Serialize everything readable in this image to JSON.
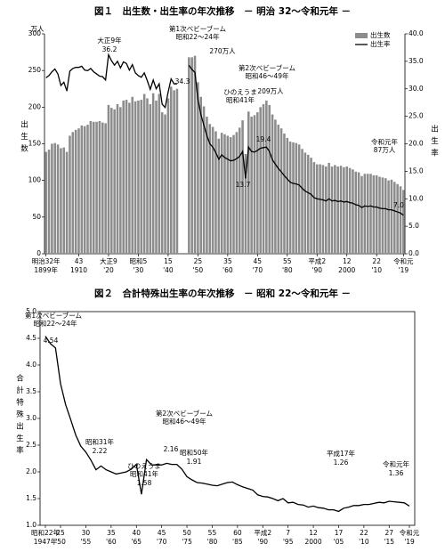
{
  "chart_data": [
    {
      "type": "combo",
      "title": "図１　出生数・出生率の年次推移　－ 明治 32～令和元年 －",
      "y_unit": "万人",
      "ylabel": "出生数",
      "y2label": "出生率",
      "legend": "upper right",
      "grid": false,
      "x": [
        1899,
        1900,
        1901,
        1902,
        1903,
        1904,
        1905,
        1906,
        1907,
        1908,
        1909,
        1910,
        1911,
        1912,
        1913,
        1914,
        1915,
        1916,
        1917,
        1918,
        1919,
        1920,
        1921,
        1922,
        1923,
        1924,
        1925,
        1926,
        1927,
        1928,
        1929,
        1930,
        1931,
        1932,
        1933,
        1934,
        1935,
        1936,
        1937,
        1938,
        1939,
        1940,
        1941,
        1942,
        1943,
        1944,
        1945,
        1946,
        1947,
        1948,
        1949,
        1950,
        1951,
        1952,
        1953,
        1954,
        1955,
        1956,
        1957,
        1958,
        1959,
        1960,
        1961,
        1962,
        1963,
        1964,
        1965,
        1966,
        1967,
        1968,
        1969,
        1970,
        1971,
        1972,
        1973,
        1974,
        1975,
        1976,
        1977,
        1978,
        1979,
        1980,
        1981,
        1982,
        1983,
        1984,
        1985,
        1986,
        1987,
        1988,
        1989,
        1990,
        1991,
        1992,
        1993,
        1994,
        1995,
        1996,
        1997,
        1998,
        1999,
        2000,
        2001,
        2002,
        2003,
        2004,
        2005,
        2006,
        2007,
        2008,
        2009,
        2010,
        2011,
        2012,
        2013,
        2014,
        2015,
        2016,
        2017,
        2018,
        2019
      ],
      "series": [
        {
          "name": "出生数",
          "type": "bar",
          "color": "#8c8c8c",
          "values": [
            139,
            142,
            150,
            151,
            149,
            144,
            145,
            139,
            161,
            166,
            169,
            171,
            175,
            174,
            176,
            181,
            180,
            180,
            181,
            179,
            178,
            203,
            199,
            197,
            204,
            200,
            209,
            210,
            206,
            214,
            208,
            209,
            210,
            218,
            212,
            204,
            219,
            209,
            218,
            193,
            190,
            212,
            228,
            223,
            225,
            null,
            null,
            null,
            268,
            268,
            270,
            234,
            214,
            201,
            187,
            177,
            173,
            167,
            157,
            165,
            163,
            161,
            159,
            162,
            166,
            172,
            182,
            136,
            194,
            187,
            189,
            193,
            200,
            204,
            209,
            203,
            190,
            183,
            176,
            171,
            164,
            158,
            153,
            152,
            151,
            149,
            143,
            138,
            135,
            131,
            125,
            122,
            122,
            121,
            119,
            124,
            119,
            121,
            119,
            120,
            118,
            119,
            117,
            115,
            112,
            111,
            106,
            109,
            109,
            109,
            107,
            107,
            105,
            104,
            103,
            100,
            101,
            98,
            95,
            92,
            87
          ]
        },
        {
          "name": "出生率",
          "type": "line",
          "axis": "y2",
          "color": "#000000",
          "values": [
            32.0,
            32.4,
            33.1,
            33.6,
            32.7,
            30.6,
            31.2,
            29.6,
            33.2,
            33.7,
            33.9,
            33.9,
            34.1,
            33.4,
            33.3,
            33.7,
            33.1,
            32.7,
            32.3,
            32.2,
            31.6,
            36.2,
            35.1,
            34.3,
            35.0,
            33.8,
            34.9,
            34.6,
            33.4,
            34.4,
            32.9,
            32.4,
            32.1,
            32.9,
            31.5,
            29.9,
            31.6,
            30.0,
            30.9,
            27.2,
            26.6,
            29.4,
            31.8,
            30.9,
            30.9,
            null,
            null,
            null,
            34.3,
            33.5,
            33.0,
            28.1,
            25.3,
            23.4,
            21.5,
            20.0,
            19.4,
            18.4,
            17.2,
            18.0,
            17.5,
            17.2,
            16.9,
            17.0,
            17.3,
            17.7,
            18.6,
            13.7,
            19.4,
            18.6,
            18.5,
            18.8,
            19.2,
            19.3,
            19.4,
            18.6,
            17.1,
            16.3,
            15.5,
            14.9,
            14.2,
            13.6,
            13.0,
            12.8,
            12.7,
            12.5,
            11.9,
            11.4,
            11.1,
            10.8,
            10.2,
            10.0,
            9.9,
            9.8,
            9.6,
            10.0,
            9.6,
            9.7,
            9.5,
            9.6,
            9.4,
            9.5,
            9.3,
            9.2,
            8.9,
            8.8,
            8.4,
            8.7,
            8.6,
            8.7,
            8.5,
            8.5,
            8.3,
            8.2,
            8.2,
            8.0,
            8.0,
            7.8,
            7.6,
            7.4,
            7.0
          ]
        }
      ],
      "xlim": [
        1899,
        2019
      ],
      "xticks": [
        {
          "value": 1899,
          "label": "明治32年",
          "sublabel": "1899年"
        },
        {
          "value": 1910,
          "label": "43",
          "sublabel": "1910"
        },
        {
          "value": 1920,
          "label": "大正9",
          "sublabel": "'20"
        },
        {
          "value": 1930,
          "label": "昭和5",
          "sublabel": "'30"
        },
        {
          "value": 1940,
          "label": "15",
          "sublabel": "'40"
        },
        {
          "value": 1950,
          "label": "25",
          "sublabel": "'50"
        },
        {
          "value": 1960,
          "label": "35",
          "sublabel": "'60"
        },
        {
          "value": 1970,
          "label": "45",
          "sublabel": "'70"
        },
        {
          "value": 1980,
          "label": "55",
          "sublabel": "'80"
        },
        {
          "value": 1990,
          "label": "平成2",
          "sublabel": "'90"
        },
        {
          "value": 2000,
          "label": "12",
          "sublabel": "2000"
        },
        {
          "value": 2010,
          "label": "22",
          "sublabel": "'10"
        },
        {
          "value": 2019,
          "label": "令和元",
          "sublabel": "'19"
        }
      ],
      "ylim": [
        0,
        300
      ],
      "yticks": [
        0,
        50,
        100,
        150,
        200,
        250,
        300
      ],
      "y2lim": [
        0,
        40
      ],
      "y2ticks": [
        {
          "value": 0,
          "label": "0.0"
        },
        {
          "value": 5,
          "label": "5.0"
        },
        {
          "value": 10,
          "label": "10.0"
        },
        {
          "value": 15,
          "label": "15.0"
        },
        {
          "value": 20,
          "label": "20.0"
        },
        {
          "value": 25,
          "label": "25.0"
        },
        {
          "value": 30,
          "label": "30.0"
        },
        {
          "value": 35,
          "label": "35.0"
        },
        {
          "value": 40,
          "label": "40.0"
        }
      ],
      "annotations": [
        "大正9年",
        "36.2",
        "第1次ベビーブーム",
        "昭和22～24年",
        "270万人",
        "34.3",
        "第2次ベビーブーム",
        "昭和46～49年",
        "209万人",
        "ひのえうま",
        "昭和41年",
        "13.7",
        "19.4",
        "令和元年",
        "87万人",
        "7.0"
      ]
    },
    {
      "type": "line",
      "title": "図２　合計特殊出生率の年次推移　－ 昭和 22～令和元年 －",
      "ylabel": "合計特殊出生率",
      "grid": false,
      "color": "#000000",
      "x": [
        1947,
        1948,
        1949,
        1950,
        1951,
        1952,
        1953,
        1954,
        1955,
        1956,
        1957,
        1958,
        1959,
        1960,
        1961,
        1962,
        1963,
        1964,
        1965,
        1966,
        1967,
        1968,
        1969,
        1970,
        1971,
        1972,
        1973,
        1974,
        1975,
        1976,
        1977,
        1978,
        1979,
        1980,
        1981,
        1982,
        1983,
        1984,
        1985,
        1986,
        1987,
        1988,
        1989,
        1990,
        1991,
        1992,
        1993,
        1994,
        1995,
        1996,
        1997,
        1998,
        1999,
        2000,
        2001,
        2002,
        2003,
        2004,
        2005,
        2006,
        2007,
        2008,
        2009,
        2010,
        2011,
        2012,
        2013,
        2014,
        2015,
        2016,
        2017,
        2018,
        2019
      ],
      "values": [
        4.54,
        4.4,
        4.32,
        3.65,
        3.26,
        2.98,
        2.69,
        2.48,
        2.37,
        2.22,
        2.04,
        2.11,
        2.04,
        2.0,
        1.96,
        1.98,
        2.0,
        2.05,
        2.14,
        1.58,
        2.23,
        2.13,
        2.13,
        2.13,
        2.16,
        2.14,
        2.14,
        2.05,
        1.91,
        1.85,
        1.8,
        1.79,
        1.77,
        1.75,
        1.74,
        1.77,
        1.8,
        1.81,
        1.76,
        1.72,
        1.69,
        1.66,
        1.57,
        1.54,
        1.53,
        1.5,
        1.46,
        1.5,
        1.42,
        1.43,
        1.39,
        1.38,
        1.34,
        1.36,
        1.33,
        1.32,
        1.29,
        1.29,
        1.26,
        1.32,
        1.34,
        1.37,
        1.37,
        1.39,
        1.39,
        1.41,
        1.43,
        1.42,
        1.45,
        1.44,
        1.43,
        1.42,
        1.36
      ],
      "xlim": [
        1947,
        2019
      ],
      "xticks": [
        {
          "value": 1947,
          "label": "昭和22年",
          "sublabel": "1947年"
        },
        {
          "value": 1950,
          "label": "25",
          "sublabel": "'50"
        },
        {
          "value": 1955,
          "label": "30",
          "sublabel": "'55"
        },
        {
          "value": 1960,
          "label": "35",
          "sublabel": "'60"
        },
        {
          "value": 1965,
          "label": "40",
          "sublabel": "'65"
        },
        {
          "value": 1970,
          "label": "45",
          "sublabel": "'70"
        },
        {
          "value": 1975,
          "label": "50",
          "sublabel": "'75"
        },
        {
          "value": 1980,
          "label": "55",
          "sublabel": "'80"
        },
        {
          "value": 1985,
          "label": "60",
          "sublabel": "'85"
        },
        {
          "value": 1990,
          "label": "平成2",
          "sublabel": "'90"
        },
        {
          "value": 1995,
          "label": "7",
          "sublabel": "'95"
        },
        {
          "value": 2000,
          "label": "12",
          "sublabel": "2000"
        },
        {
          "value": 2005,
          "label": "17",
          "sublabel": "'05"
        },
        {
          "value": 2010,
          "label": "22",
          "sublabel": "'10"
        },
        {
          "value": 2015,
          "label": "27",
          "sublabel": "'15"
        },
        {
          "value": 2019,
          "label": "令和元",
          "sublabel": "'19"
        }
      ],
      "ylim": [
        1,
        5
      ],
      "yticks": [
        {
          "value": 1,
          "label": "1.0"
        },
        1.5,
        {
          "value": 2,
          "label": "2.0"
        },
        2.5,
        {
          "value": 3,
          "label": "3.0"
        },
        3.5,
        {
          "value": 4,
          "label": "4.0"
        },
        4.5,
        {
          "value": 5,
          "label": "5.0"
        }
      ],
      "annotations": [
        "第1次ベビーブーム",
        "昭和22～24年",
        "4.54",
        "昭和31年",
        "2.22",
        "ひのえうま",
        "昭和41年",
        "1.58",
        "第2次ベビーブーム",
        "昭和46～49年",
        "2.16",
        "昭和50年",
        "1.91",
        "平成17年",
        "1.26",
        "令和元年",
        "1.36"
      ]
    }
  ]
}
